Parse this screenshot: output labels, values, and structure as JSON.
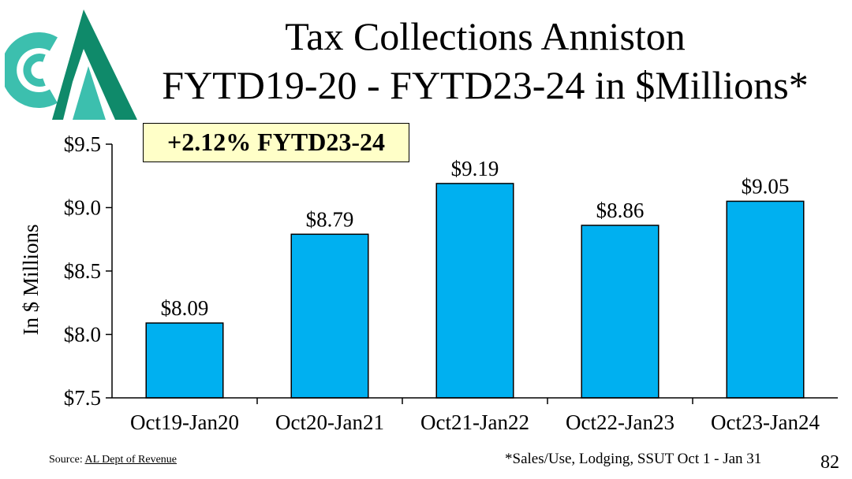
{
  "title": {
    "line1": "Tax Collections Anniston",
    "line2": "FYTD19-20 - FYTD23-24 in $Millions*"
  },
  "callout": "+2.12% FYTD23-24",
  "colors": {
    "bar": "#00b0f0",
    "callout_bg": "#ffffc8",
    "logo_teal": "#3cbfae",
    "logo_green": "#0f8a6a"
  },
  "chart_data": {
    "type": "bar",
    "categories": [
      "Oct19-Jan20",
      "Oct20-Jan21",
      "Oct21-Jan22",
      "Oct22-Jan23",
      "Oct23-Jan24"
    ],
    "values": [
      8.09,
      8.79,
      9.19,
      8.86,
      9.05
    ],
    "value_labels": [
      "$8.09",
      "$8.79",
      "$9.19",
      "$8.86",
      "$9.05"
    ],
    "ylabel": "In $ Millions",
    "xlabel": "",
    "ylim": [
      7.5,
      9.5
    ],
    "yticks": [
      7.5,
      8.0,
      8.5,
      9.0,
      9.5
    ],
    "ytick_labels": [
      "$7.5",
      "$8.0",
      "$8.5",
      "$9.0",
      "$9.5"
    ],
    "grid": false
  },
  "footer": {
    "source_prefix": "Source: ",
    "source_link": "AL Dept of Revenue",
    "footnote": "*Sales/Use, Lodging, SSUT Oct 1 - Jan 31",
    "page_number": "82"
  }
}
